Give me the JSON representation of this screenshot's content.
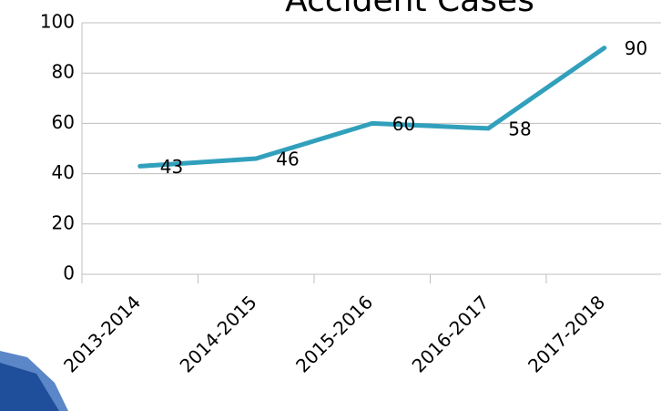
{
  "chart_data": {
    "type": "line",
    "title": "Accident Cases",
    "categories": [
      "2013-2014",
      "2014-2015",
      "2015-2016",
      "2016-2017",
      "2017-2018"
    ],
    "values": [
      43,
      46,
      60,
      58,
      90
    ],
    "color": "#31a0bc",
    "ylim": [
      0,
      100
    ],
    "yticks": [
      0,
      20,
      40,
      60,
      80,
      100
    ],
    "grid": true
  }
}
